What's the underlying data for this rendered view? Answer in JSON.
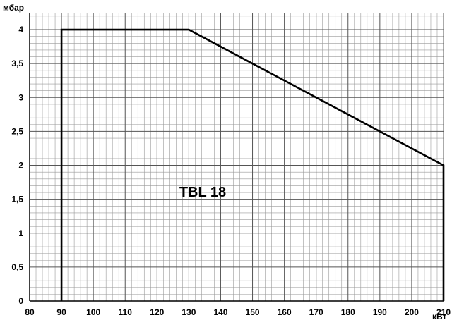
{
  "chart_data": {
    "type": "line",
    "ylabel": "мбар",
    "xlabel": "кВт",
    "xlim": [
      80,
      210
    ],
    "ylim": [
      0,
      4.25
    ],
    "x_ticks": [
      80,
      90,
      100,
      110,
      120,
      130,
      140,
      150,
      160,
      170,
      180,
      190,
      200,
      210
    ],
    "y_ticks": [
      "0",
      "0,5",
      "1",
      "1,5",
      "2",
      "2,5",
      "3",
      "3,5",
      "4"
    ],
    "y_tick_values": [
      0,
      0.5,
      1,
      1.5,
      2,
      2.5,
      3,
      3.5,
      4
    ],
    "grid": true,
    "annotation": "TBL 18",
    "series": [
      {
        "x": [
          90,
          90,
          130,
          210,
          210
        ],
        "y": [
          0,
          4,
          4,
          2,
          0
        ]
      }
    ]
  }
}
